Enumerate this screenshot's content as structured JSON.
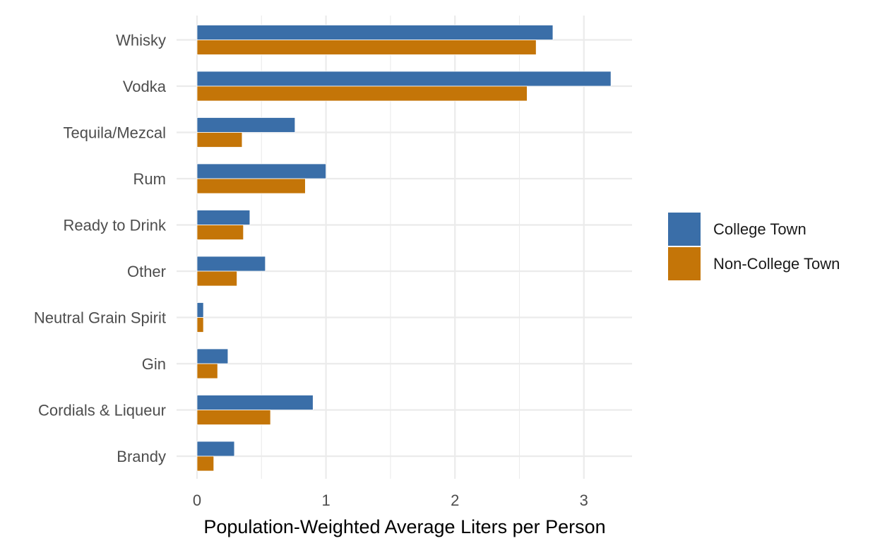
{
  "chart_data": {
    "type": "bar",
    "orientation": "horizontal",
    "title": "",
    "xlabel": "Population-Weighted Average Liters per Person",
    "ylabel": "",
    "xlim": [
      -0.05,
      3.38
    ],
    "x_ticks": [
      0,
      1,
      2,
      3
    ],
    "grid": true,
    "legend_position": "right",
    "categories": [
      "Whisky",
      "Vodka",
      "Tequila/Mezcal",
      "Rum",
      "Ready to Drink",
      "Other",
      "Neutral Grain Spirit",
      "Gin",
      "Cordials & Liqueur",
      "Brandy"
    ],
    "series": [
      {
        "name": "College Town",
        "color": "#3a6ea8",
        "values": [
          2.76,
          3.21,
          0.76,
          1.0,
          0.41,
          0.53,
          0.05,
          0.24,
          0.9,
          0.29
        ]
      },
      {
        "name": "Non-College Town",
        "color": "#c47508",
        "values": [
          2.63,
          2.56,
          0.35,
          0.84,
          0.36,
          0.31,
          0.05,
          0.16,
          0.57,
          0.13
        ]
      }
    ]
  }
}
